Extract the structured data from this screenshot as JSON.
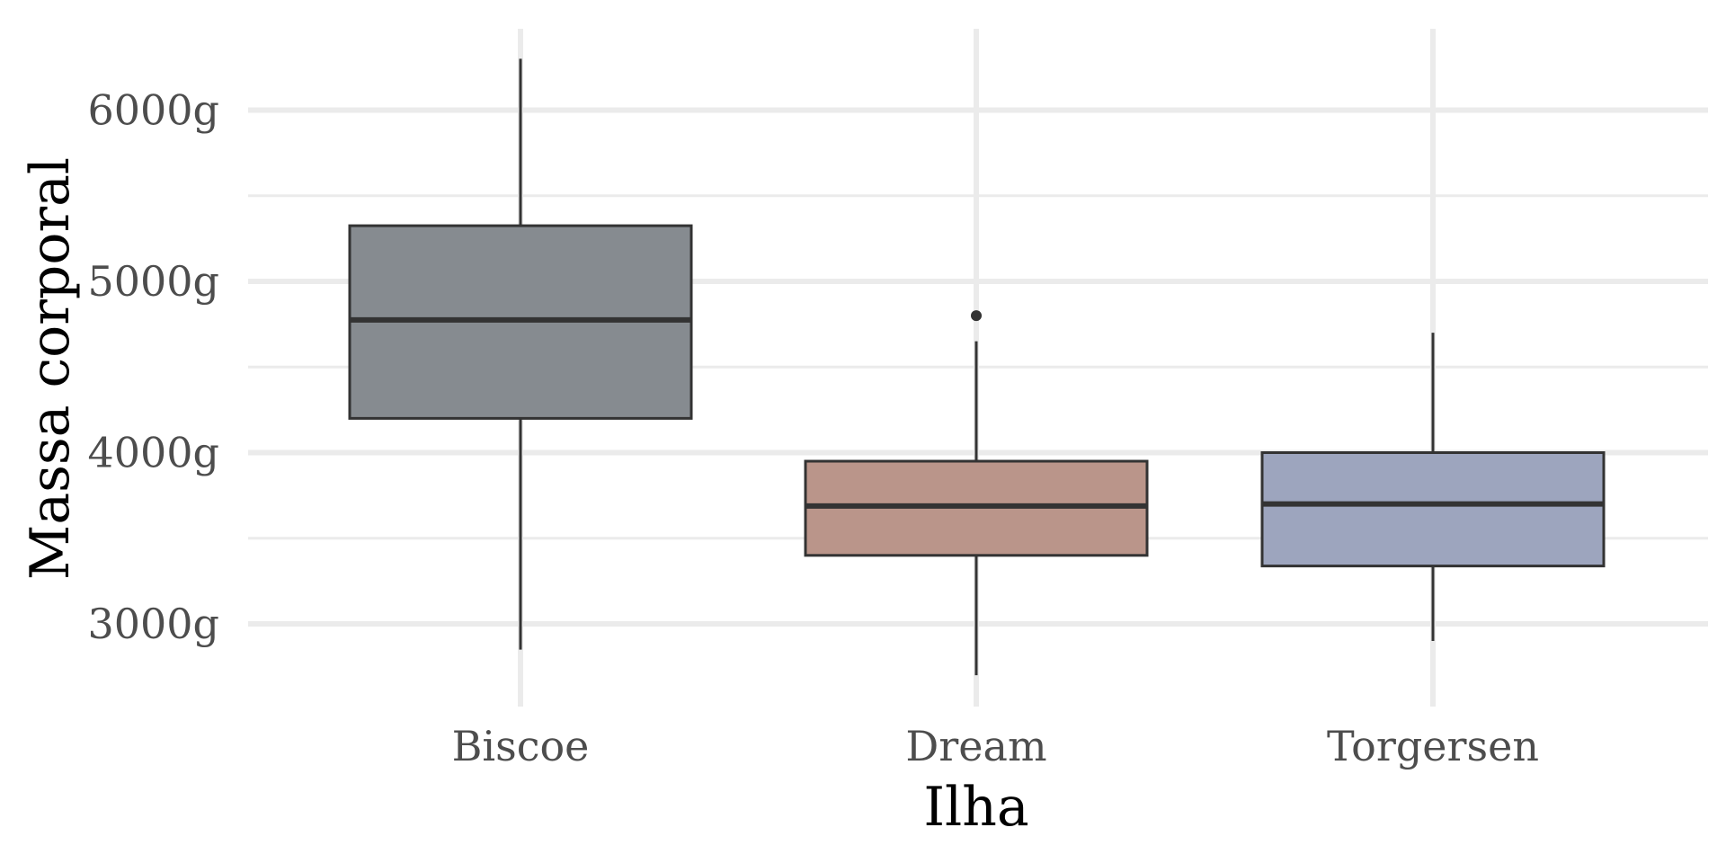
{
  "chart_data": {
    "type": "boxplot",
    "title": "",
    "xlabel": "Ilha",
    "ylabel": "Massa corporal",
    "categories": [
      "Biscoe",
      "Dream",
      "Torgersen"
    ],
    "boxes": [
      {
        "category": "Biscoe",
        "min": 2850,
        "q1": 4200,
        "median": 4775,
        "q3": 5325,
        "max": 6300,
        "outliers": [],
        "fill": "#868b90"
      },
      {
        "category": "Dream",
        "min": 2700,
        "q1": 3400,
        "median": 3688,
        "q3": 3950,
        "max": 4650,
        "outliers": [
          4800
        ],
        "fill": "#ba958a"
      },
      {
        "category": "Torgersen",
        "min": 2900,
        "q1": 3338,
        "median": 3700,
        "q3": 4000,
        "max": 4700,
        "outliers": [],
        "fill": "#9da5be"
      }
    ],
    "y_ticks": [
      3000,
      4000,
      5000,
      6000
    ],
    "y_tick_labels": [
      "3000g",
      "4000g",
      "5000g",
      "6000g"
    ],
    "y_minor_ticks": [
      3500,
      4500,
      5500
    ],
    "ylim": [
      2550,
      6480
    ],
    "grid": true,
    "legend": "none",
    "colors": {
      "grid": "#ebebeb",
      "box_stroke": "#333333",
      "tick_text": "#4d4d4d"
    }
  }
}
